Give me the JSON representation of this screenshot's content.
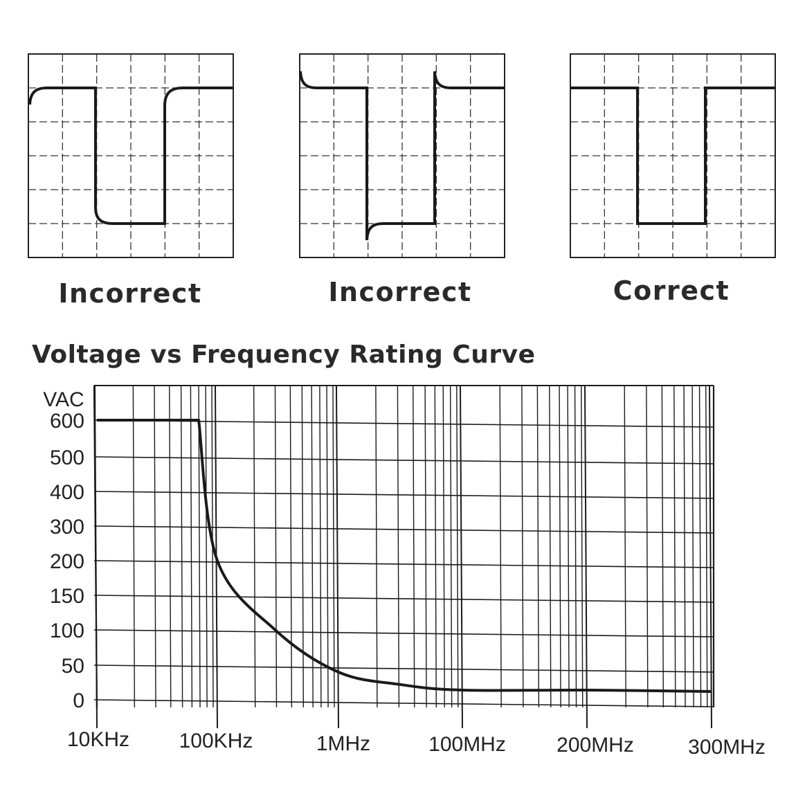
{
  "scopes": [
    {
      "label": "Incorrect",
      "trace": "undershoot-rounded"
    },
    {
      "label": "Incorrect",
      "trace": "overshoot"
    },
    {
      "label": "Correct",
      "trace": "square"
    }
  ],
  "chart_data": {
    "type": "line",
    "title": "Voltage vs Frequency Rating Curve",
    "ylabel": "VAC",
    "xlabel": "",
    "x_scale": "categorical-log",
    "x_ticks": [
      "10KHz",
      "100KHz",
      "1MHz",
      "100MHz",
      "200MHz",
      "300MHz"
    ],
    "y_ticks": [
      "600",
      "500",
      "400",
      "300",
      "200",
      "150",
      "100",
      "50",
      "0"
    ],
    "grid": true,
    "series": [
      {
        "points": [
          {
            "x": "10KHz",
            "y": 600
          },
          {
            "x": "70KHz",
            "y": 600
          },
          {
            "x": "100KHz",
            "y": 200
          },
          {
            "x": "300KHz",
            "y": 100
          },
          {
            "x": "1MHz",
            "y": 40
          },
          {
            "x": "10MHz",
            "y": 22
          },
          {
            "x": "100MHz",
            "y": 14
          },
          {
            "x": "200MHz",
            "y": 14
          },
          {
            "x": "300MHz",
            "y": 12
          }
        ]
      }
    ],
    "colors": {
      "line": "#1a1a1a",
      "grid": "#1a1a1a"
    }
  }
}
